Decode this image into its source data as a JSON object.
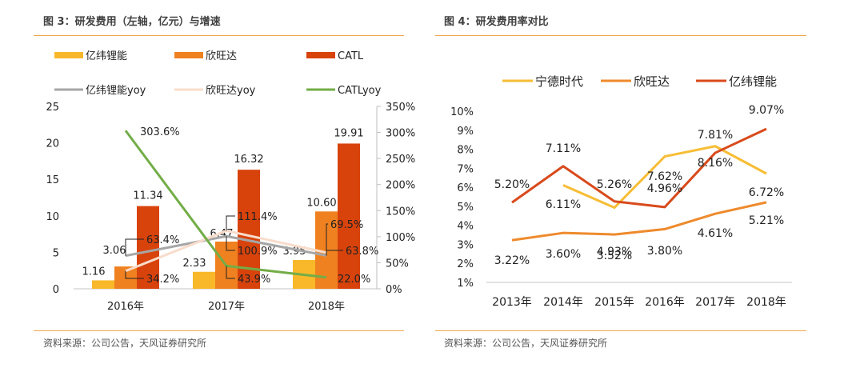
{
  "left": {
    "figure_title": "图 3：研发费用（左轴，亿元）与增速",
    "source": "资料来源：公司公告，天风证券研究所"
  },
  "right": {
    "figure_title": "图 4：研发费用率对比",
    "source": "资料来源：公司公告，天风证券研究所"
  },
  "chart_data": [
    {
      "type": "bar",
      "title": "研发费用（左轴，亿元）与增速",
      "categories": [
        "2016年",
        "2017年",
        "2018年"
      ],
      "ylim": [
        0,
        25
      ],
      "yticks": [
        "0",
        "5",
        "10",
        "15",
        "20",
        "25"
      ],
      "ytick_values": [
        0,
        5,
        10,
        15,
        20,
        25
      ],
      "y2lim": [
        0,
        350
      ],
      "y2ticks": [
        "0%",
        "50%",
        "100%",
        "150%",
        "200%",
        "250%",
        "300%",
        "350%"
      ],
      "y2tick_values": [
        0,
        50,
        100,
        150,
        200,
        250,
        300,
        350
      ],
      "legend_position": "top",
      "grid": false,
      "series": [
        {
          "name": "亿纬锂能",
          "kind": "bar",
          "axis": "left",
          "color": "#f9b82a",
          "values": [
            1.16,
            2.33,
            3.95
          ],
          "labels": [
            "1.16",
            "2.33",
            "3.95"
          ]
        },
        {
          "name": "欣旺达",
          "kind": "bar",
          "axis": "left",
          "color": "#f08120",
          "values": [
            3.06,
            6.47,
            10.6
          ],
          "labels": [
            "3.06",
            "6.47",
            "10.60"
          ]
        },
        {
          "name": "CATL",
          "kind": "bar",
          "axis": "left",
          "color": "#d8430c",
          "values": [
            11.34,
            16.32,
            19.91
          ],
          "labels": [
            "11.34",
            "16.32",
            "19.91"
          ]
        },
        {
          "name": "亿纬锂能yoy",
          "kind": "line",
          "axis": "right",
          "color": "#a6a6a6",
          "values": [
            63.4,
            100.9,
            63.8
          ],
          "labels": [
            "63.4%",
            "100.9%",
            "63.8%"
          ]
        },
        {
          "name": "欣旺达yoy",
          "kind": "line",
          "axis": "right",
          "color": "#f8dccb",
          "values": [
            34.2,
            111.4,
            69.5
          ],
          "labels": [
            "34.2%",
            "111.4%",
            "69.5%"
          ]
        },
        {
          "name": "CATLyoy",
          "kind": "line",
          "axis": "right",
          "color": "#72ad47",
          "values": [
            303.6,
            43.9,
            22.0
          ],
          "labels": [
            "303.6%",
            "43.9%",
            "22.0%"
          ]
        }
      ]
    },
    {
      "type": "line",
      "title": "研发费用率对比",
      "categories": [
        "2013年",
        "2014年",
        "2015年",
        "2016年",
        "2017年",
        "2018年"
      ],
      "ylim": [
        1,
        10
      ],
      "yticks": [
        "1%",
        "2%",
        "3%",
        "4%",
        "5%",
        "6%",
        "7%",
        "8%",
        "9%",
        "10%"
      ],
      "ytick_values": [
        1,
        2,
        3,
        4,
        5,
        6,
        7,
        8,
        9,
        10
      ],
      "legend_position": "top",
      "grid": false,
      "series": [
        {
          "name": "宁德时代",
          "color": "#f7bd35",
          "values": [
            null,
            6.11,
            4.93,
            7.62,
            8.16,
            6.72
          ],
          "labels": [
            null,
            "6.11%",
            "4.93%",
            "7.62%",
            "8.16%",
            "6.72%"
          ]
        },
        {
          "name": "欣旺达",
          "color": "#ee8a2c",
          "values": [
            3.22,
            3.6,
            3.52,
            3.8,
            4.61,
            5.21
          ],
          "labels": [
            "3.22%",
            "3.60%",
            "3.52%",
            "3.80%",
            "4.61%",
            "5.21%"
          ]
        },
        {
          "name": "亿纬锂能",
          "color": "#d84a1c",
          "values": [
            5.2,
            7.11,
            5.26,
            4.96,
            7.81,
            9.07
          ],
          "labels": [
            "5.20%",
            "7.11%",
            "5.26%",
            "4.96%",
            "7.81%",
            "9.07%"
          ]
        }
      ]
    }
  ]
}
